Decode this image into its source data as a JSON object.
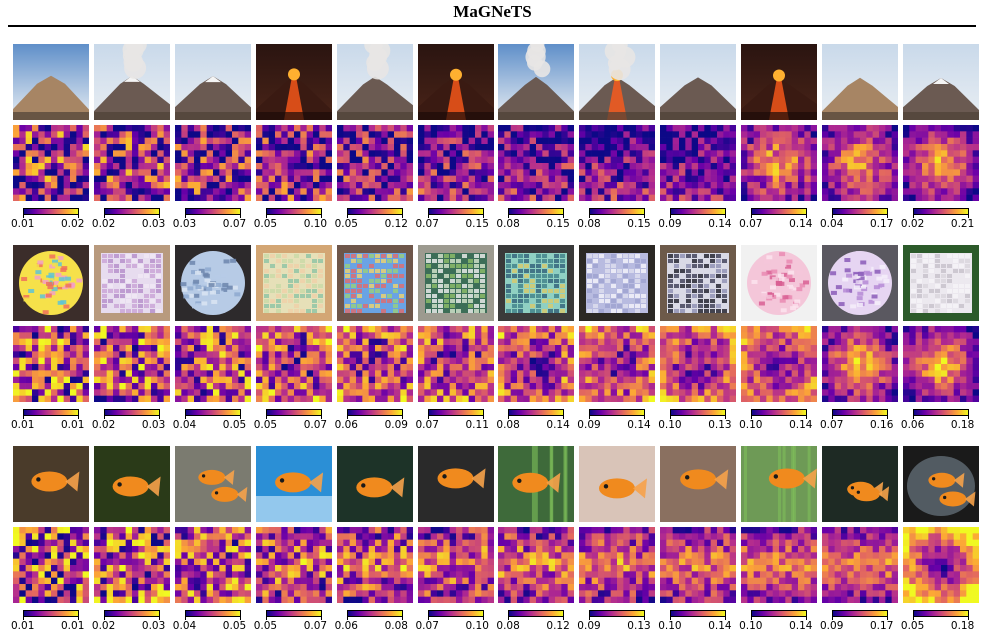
{
  "title": "MaGNeTS",
  "colormap": [
    "#0d0887",
    "#6a00a8",
    "#b12a90",
    "#e16462",
    "#fca636",
    "#f0f921"
  ],
  "rows": [
    {
      "subject": "volcano",
      "colorbars": [
        [
          "0.01",
          "0.02"
        ],
        [
          "0.02",
          "0.03"
        ],
        [
          "0.03",
          "0.07"
        ],
        [
          "0.05",
          "0.10"
        ],
        [
          "0.05",
          "0.12"
        ],
        [
          "0.07",
          "0.15"
        ],
        [
          "0.08",
          "0.15"
        ],
        [
          "0.08",
          "0.15"
        ],
        [
          "0.09",
          "0.14"
        ],
        [
          "0.07",
          "0.14"
        ],
        [
          "0.04",
          "0.17"
        ],
        [
          "0.02",
          "0.21"
        ]
      ]
    },
    {
      "subject": "knitted dishcloth",
      "colorbars": [
        [
          "0.01",
          "0.01"
        ],
        [
          "0.02",
          "0.03"
        ],
        [
          "0.04",
          "0.05"
        ],
        [
          "0.05",
          "0.07"
        ],
        [
          "0.06",
          "0.09"
        ],
        [
          "0.07",
          "0.11"
        ],
        [
          "0.08",
          "0.14"
        ],
        [
          "0.09",
          "0.14"
        ],
        [
          "0.10",
          "0.13"
        ],
        [
          "0.10",
          "0.14"
        ],
        [
          "0.07",
          "0.16"
        ],
        [
          "0.06",
          "0.18"
        ]
      ]
    },
    {
      "subject": "goldfish",
      "colorbars": [
        [
          "0.01",
          "0.01"
        ],
        [
          "0.02",
          "0.03"
        ],
        [
          "0.04",
          "0.05"
        ],
        [
          "0.05",
          "0.07"
        ],
        [
          "0.06",
          "0.08"
        ],
        [
          "0.07",
          "0.10"
        ],
        [
          "0.08",
          "0.12"
        ],
        [
          "0.09",
          "0.13"
        ],
        [
          "0.10",
          "0.14"
        ],
        [
          "0.10",
          "0.14"
        ],
        [
          "0.09",
          "0.17"
        ],
        [
          "0.05",
          "0.18"
        ]
      ]
    }
  ]
}
